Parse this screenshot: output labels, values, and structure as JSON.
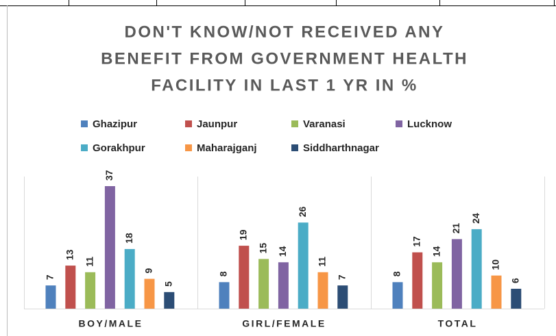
{
  "chart_data": {
    "type": "bar",
    "title": [
      "DON'T KNOW/NOT RECEIVED ANY",
      "BENEFIT FROM GOVERNMENT HEALTH",
      "FACILITY IN LAST 1 YR IN %"
    ],
    "categories": [
      "BOY/MALE",
      "GIRL/FEMALE",
      "TOTAL"
    ],
    "series": [
      {
        "name": "Ghazipur",
        "color": "#4f81bd",
        "values": [
          7,
          8,
          8
        ]
      },
      {
        "name": "Jaunpur",
        "color": "#c0504d",
        "values": [
          13,
          19,
          17
        ]
      },
      {
        "name": "Varanasi",
        "color": "#9bbb59",
        "values": [
          11,
          15,
          14
        ]
      },
      {
        "name": "Lucknow",
        "color": "#8064a2",
        "values": [
          37,
          14,
          21
        ]
      },
      {
        "name": "Gorakhpur",
        "color": "#4bacc6",
        "values": [
          18,
          26,
          24
        ]
      },
      {
        "name": "Maharajganj",
        "color": "#f79646",
        "values": [
          9,
          11,
          10
        ]
      },
      {
        "name": "Siddharthnagar",
        "color": "#2c4d75",
        "values": [
          5,
          7,
          6
        ]
      }
    ]
  }
}
